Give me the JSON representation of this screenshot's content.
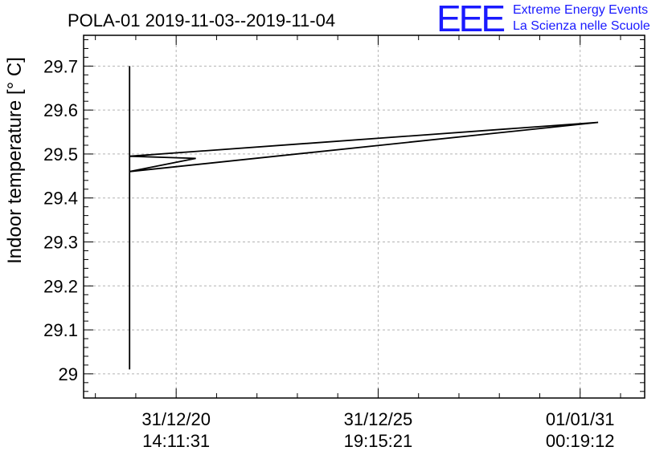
{
  "brand": {
    "letters": "EEE",
    "line1": "Extreme Energy Events",
    "line2": "La Scienza nelle Scuole",
    "color": "#1a1aff"
  },
  "chart_data": {
    "type": "line",
    "title": "POLA-01 2019-11-03--2019-11-04",
    "ylabel": "Indoor temperature [° C]",
    "xlabel": "",
    "ylim": [
      28.945,
      29.77
    ],
    "yticks": [
      29,
      29.1,
      29.2,
      29.3,
      29.4,
      29.5,
      29.6,
      29.7
    ],
    "ytick_labels": [
      "29",
      "29.1",
      "29.2",
      "29.3",
      "29.4",
      "29.5",
      "29.6",
      "29.7"
    ],
    "xlim": [
      0,
      1
    ],
    "xticks": [
      0.165,
      0.525,
      0.885
    ],
    "xtick_labels": [
      {
        "date": "31/12/20",
        "time": "14:11:31"
      },
      {
        "date": "31/12/25",
        "time": "19:15:21"
      },
      {
        "date": "01/01/31",
        "time": "00:19:12"
      }
    ],
    "grid": true,
    "series": [
      {
        "name": "temperature",
        "color": "#000000",
        "x": [
          0.082,
          0.082,
          0.082,
          0.2,
          0.082,
          0.917,
          0.082
        ],
        "y": [
          29.7,
          29.01,
          29.495,
          29.49,
          29.46,
          29.572,
          29.495
        ]
      }
    ]
  }
}
